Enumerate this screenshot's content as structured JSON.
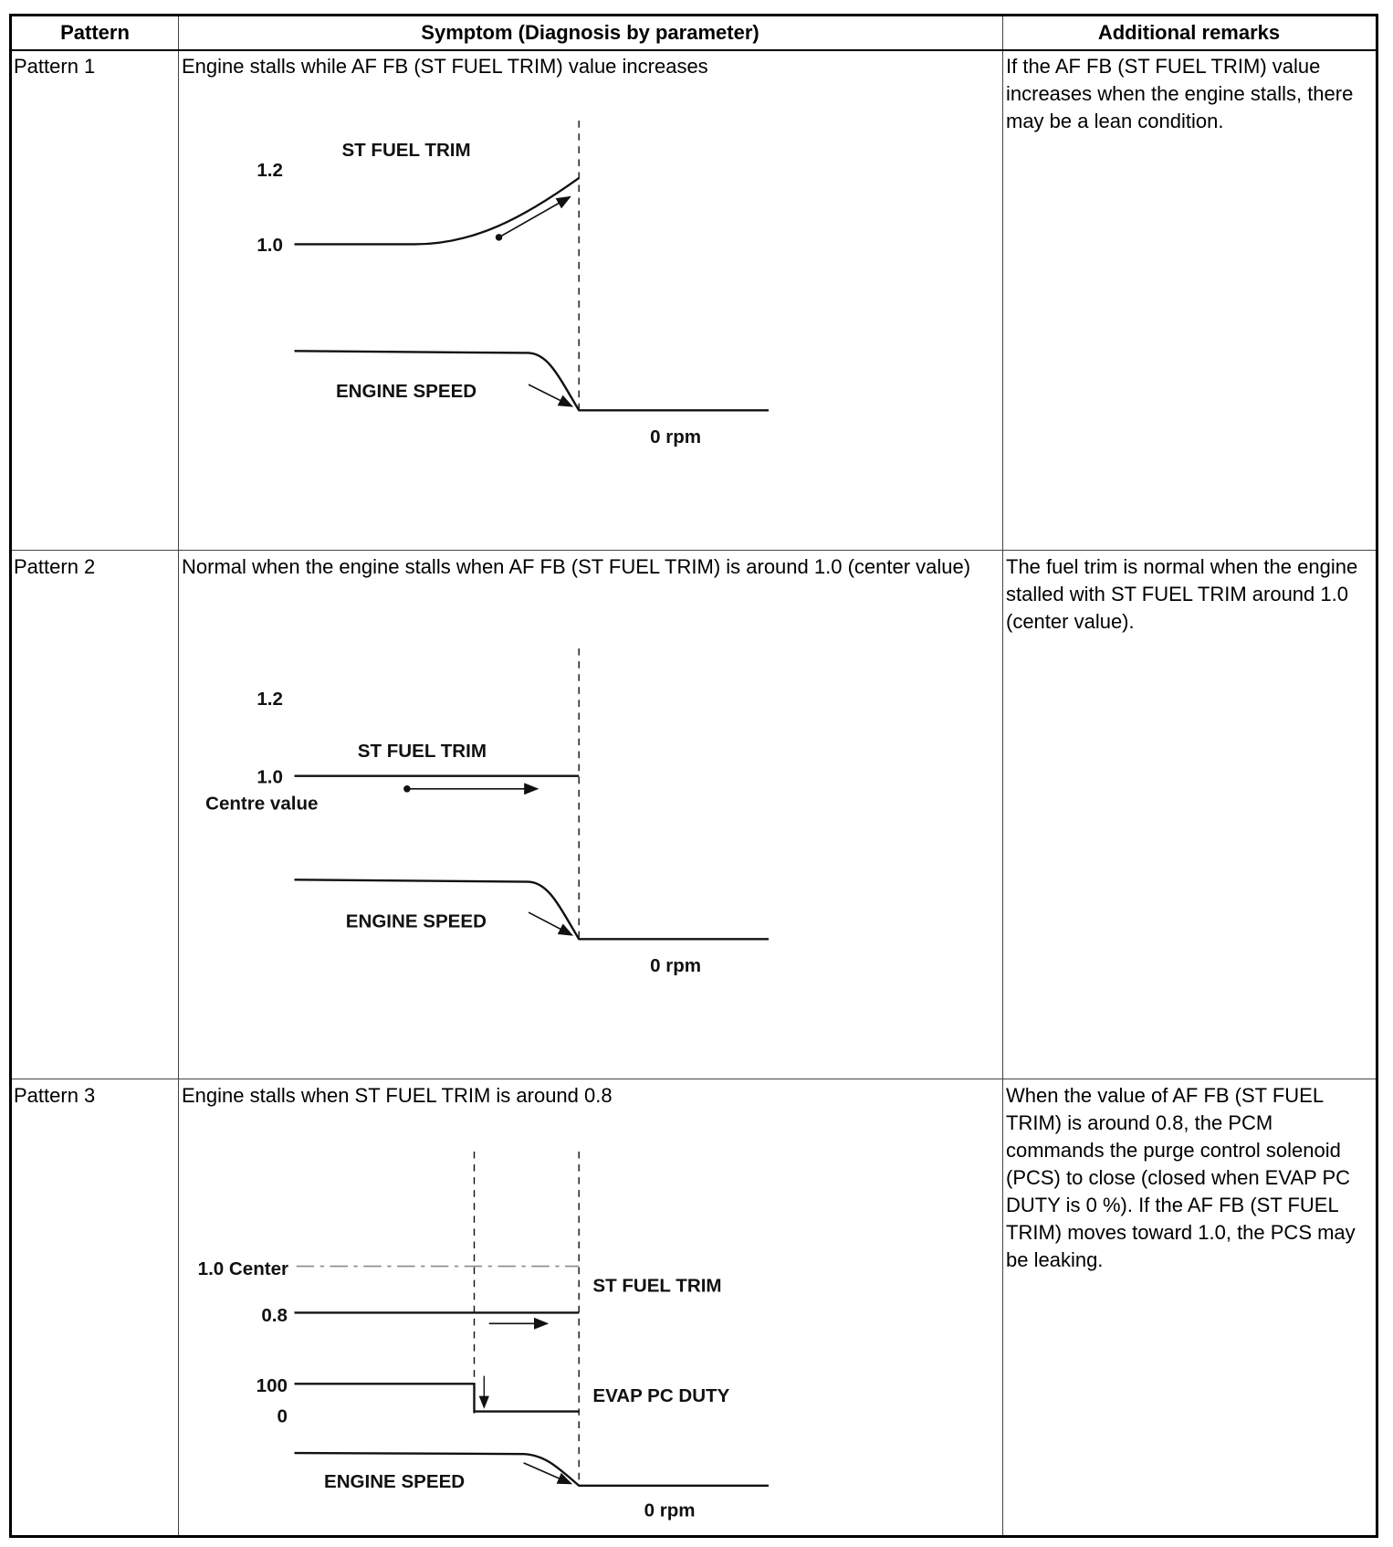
{
  "headers": {
    "pattern": "Pattern",
    "symptom": "Symptom (Diagnosis by parameter)",
    "remarks": "Additional remarks"
  },
  "rows": [
    {
      "pattern": "Pattern 1",
      "symptom": "Engine stalls while AF FB (ST FUEL TRIM) value increases",
      "remarks": "If the AF FB (ST FUEL TRIM) value increases when the engine stalls, there may be a lean condition.",
      "diagram": {
        "trim_label": "ST FUEL TRIM",
        "tick_high": "1.2",
        "tick_center": "1.0",
        "speed_label": "ENGINE SPEED",
        "zero_label": "0 rpm"
      }
    },
    {
      "pattern": "Pattern 2",
      "symptom": "Normal when the engine stalls when AF FB (ST FUEL TRIM) is around 1.0 (center value)",
      "remarks": "The fuel trim is normal when the engine stalled with ST FUEL TRIM around 1.0 (center value).",
      "diagram": {
        "trim_label": "ST FUEL TRIM",
        "tick_high": "1.2",
        "tick_center": "1.0",
        "center_note": "Centre value",
        "speed_label": "ENGINE SPEED",
        "zero_label": "0 rpm"
      }
    },
    {
      "pattern": "Pattern 3",
      "symptom": "Engine stalls when ST FUEL TRIM is around 0.8",
      "remarks": "When the value of AF FB (ST FUEL TRIM) is around 0.8, the PCM commands the purge control solenoid (PCS) to close (closed when EVAP PC DUTY is 0 %). If the AF FB (ST FUEL TRIM) moves toward 1.0, the PCS may be leaking.",
      "diagram": {
        "center_label": "1.0 Center",
        "trim_label": "ST FUEL TRIM",
        "tick_trim": "0.8",
        "duty_high": "100",
        "duty_low": "0",
        "duty_label": "EVAP PC DUTY",
        "speed_label": "ENGINE SPEED",
        "zero_label": "0 rpm"
      }
    }
  ]
}
